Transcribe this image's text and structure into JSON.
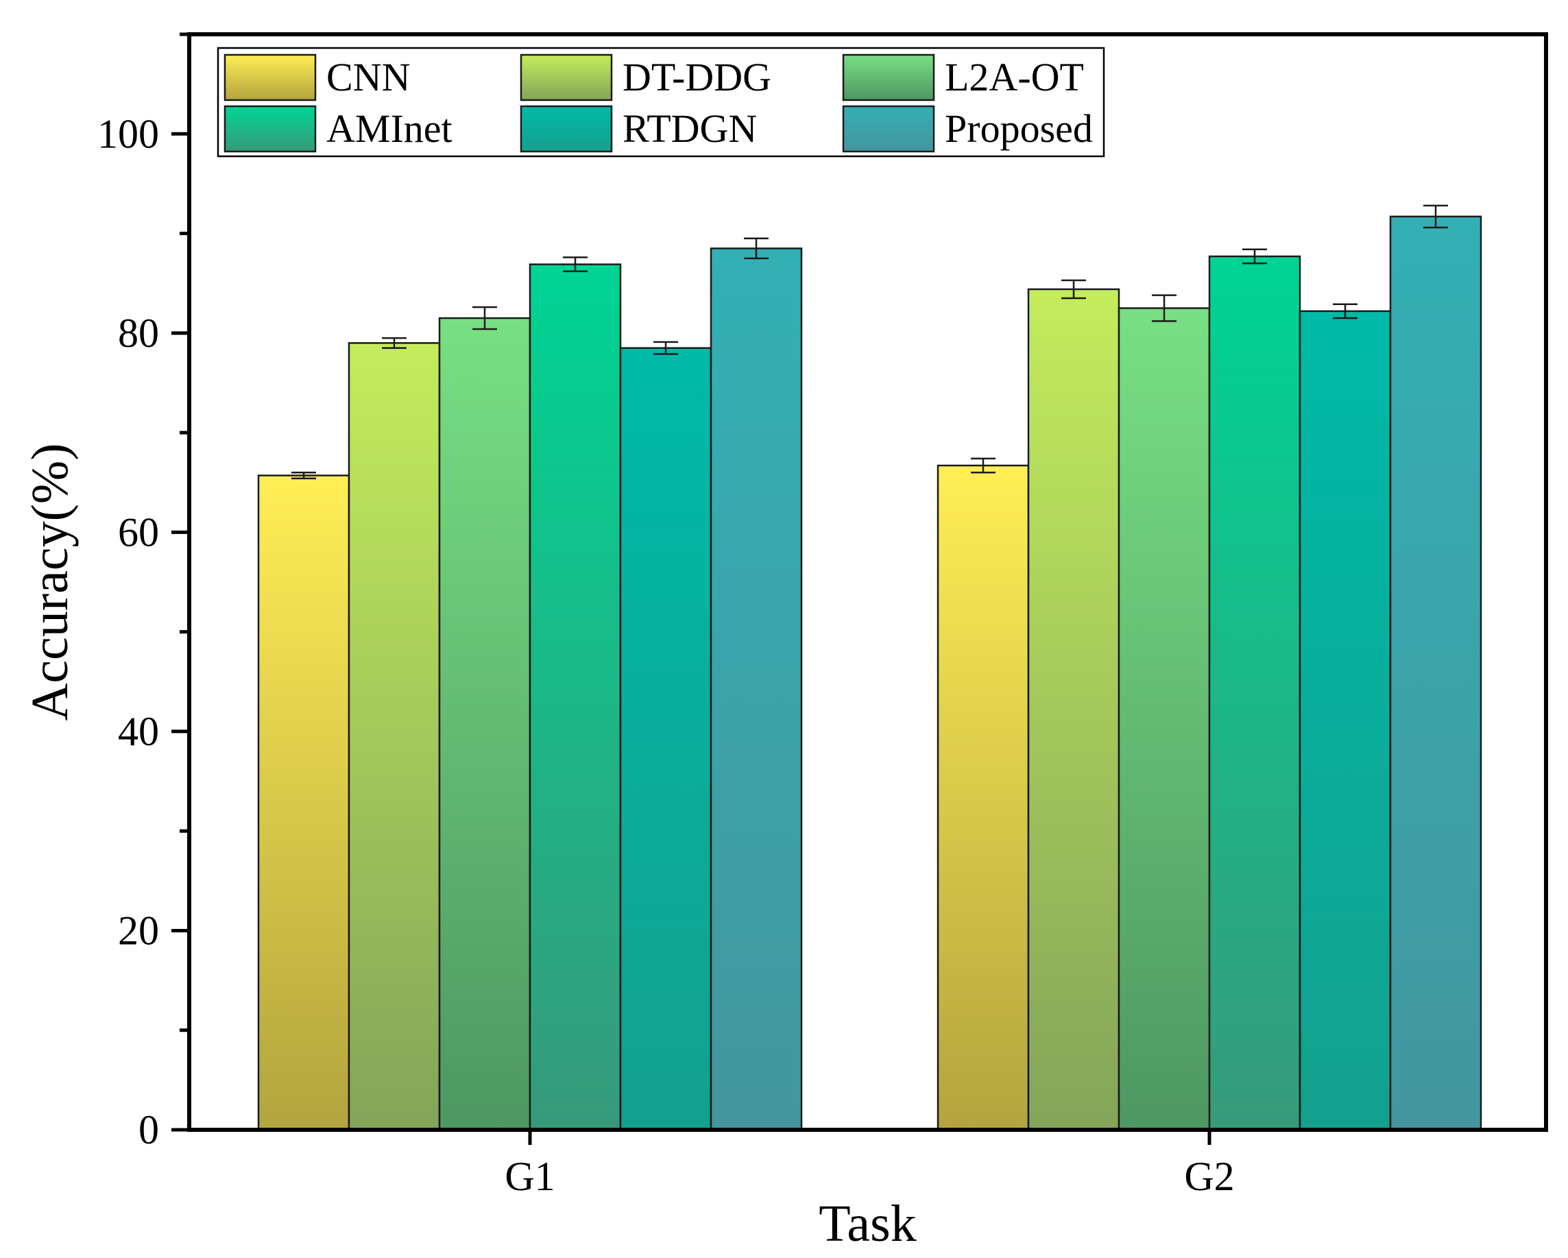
{
  "chart_data": {
    "type": "bar",
    "title": "",
    "xlabel": "Task",
    "ylabel": "Accuracy(%)",
    "categories": [
      "G1",
      "G2"
    ],
    "ylim": [
      0,
      110
    ],
    "yticks": [
      0,
      20,
      40,
      60,
      80,
      100
    ],
    "minor_step": 10,
    "grid": false,
    "legend_position": "top-left",
    "series": [
      {
        "name": "CNN",
        "values": [
          65.7,
          66.7
        ],
        "errors": [
          0.3,
          0.7
        ],
        "color_top": "#ffee55",
        "color_bottom": "#b3a43e"
      },
      {
        "name": "DT-DDG",
        "values": [
          79.0,
          84.4
        ],
        "errors": [
          0.5,
          0.9
        ],
        "color_top": "#c4ec5c",
        "color_bottom": "#84a45a"
      },
      {
        "name": "L2A-OT",
        "values": [
          81.5,
          82.5
        ],
        "errors": [
          1.1,
          1.3
        ],
        "color_top": "#78df84",
        "color_bottom": "#4e9762"
      },
      {
        "name": "AMInet",
        "values": [
          86.9,
          87.7
        ],
        "errors": [
          0.7,
          0.7
        ],
        "color_top": "#00d494",
        "color_bottom": "#379a7a"
      },
      {
        "name": "RTDGN",
        "values": [
          78.5,
          82.2
        ],
        "errors": [
          0.6,
          0.7
        ],
        "color_top": "#00baa8",
        "color_bottom": "#14a08e"
      },
      {
        "name": "Proposed",
        "values": [
          88.5,
          91.7
        ],
        "errors": [
          1.0,
          1.1
        ],
        "color_top": "#33b0b4",
        "color_bottom": "#44969e"
      }
    ]
  }
}
